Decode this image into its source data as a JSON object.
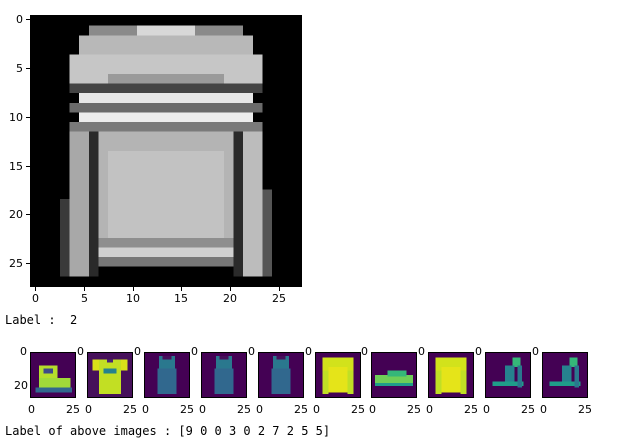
{
  "big_image": {
    "x_ticks": [
      "0",
      "5",
      "10",
      "15",
      "20",
      "25"
    ],
    "y_ticks": [
      "0",
      "5",
      "10",
      "15",
      "20",
      "25"
    ],
    "colormap": "gray"
  },
  "label_line": "Label :  2",
  "thumbnails": {
    "colormap": "viridis",
    "y_ticks": [
      "0",
      "20"
    ],
    "x_ticks": [
      "0",
      "25"
    ],
    "items": [
      {
        "icon": "ankle-boot-icon"
      },
      {
        "icon": "tshirt-icon"
      },
      {
        "icon": "dress-icon"
      },
      {
        "icon": "dress-icon"
      },
      {
        "icon": "dress-icon"
      },
      {
        "icon": "pullover-icon"
      },
      {
        "icon": "sneaker-icon"
      },
      {
        "icon": "pullover-icon"
      },
      {
        "icon": "sandal-icon"
      },
      {
        "icon": "sandal-icon"
      }
    ]
  },
  "labels_line": "Label of above images : [9 0 0 3 0 2 7 2 5 5]"
}
